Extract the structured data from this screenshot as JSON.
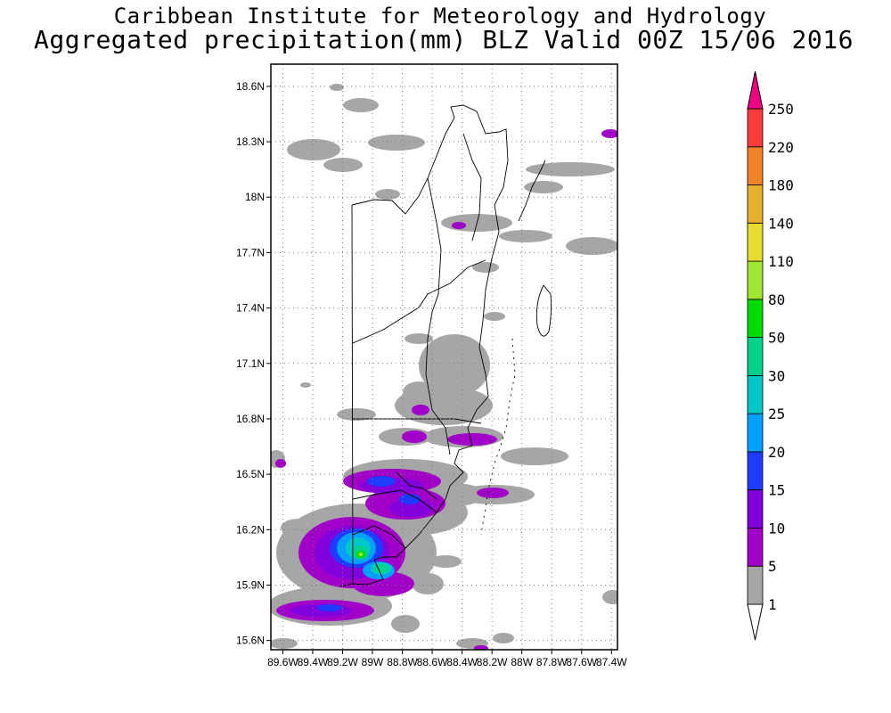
{
  "header": {
    "institute": "Caribbean Institute for Meteorology and Hydrology",
    "title": "Aggregated precipitation(mm) BLZ Valid 00Z 15/06 2016"
  },
  "map": {
    "region": "Belize",
    "lat_labels": [
      "18.6N",
      "18.3N",
      "18N",
      "17.7N",
      "17.4N",
      "17.1N",
      "16.8N",
      "16.5N",
      "16.2N",
      "15.9N",
      "15.6N"
    ],
    "lon_labels": [
      "89.6W",
      "89.4W",
      "89.2W",
      "89W",
      "88.8W",
      "88.6W",
      "88.4W",
      "88.2W",
      "88W",
      "87.8W",
      "87.6W",
      "87.4W"
    ],
    "lat_range": [
      15.55,
      18.72
    ],
    "lon_range": [
      89.68,
      87.36
    ],
    "grid": true
  },
  "colorbar": {
    "unit": "mm",
    "levels": [
      "1",
      "5",
      "10",
      "15",
      "20",
      "25",
      "30",
      "50",
      "80",
      "110",
      "140",
      "180",
      "220",
      "250"
    ],
    "colors": [
      "#a6a6a6",
      "#a000c8",
      "#8200dc",
      "#1e3cff",
      "#00a0ff",
      "#00c8c8",
      "#00d28c",
      "#00dc00",
      "#a0e632",
      "#e6dc32",
      "#e6af2d",
      "#f08228",
      "#fa3c3c",
      "#f00082"
    ]
  }
}
